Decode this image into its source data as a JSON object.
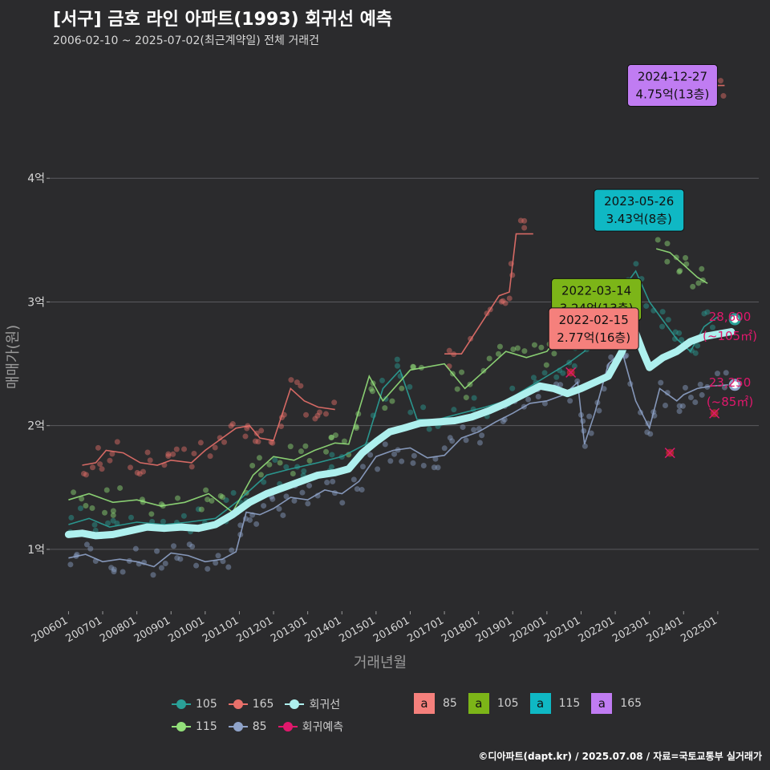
{
  "header": {
    "title": "[서구] 금호 라인 아파트(1993) 회귀선 예측",
    "subtitle": "2006-02-10 ~ 2025-07-02(최근계약일) 전체 거래건"
  },
  "footer": "©디아파트(dapt.kr) / 2025.07.08 / 자료=국토교통부 실거래가",
  "colors": {
    "background": "#2b2b2d",
    "grid": "#5a5a5e",
    "s85": "#8fa3c9",
    "s105": "#2aa198",
    "s115": "#93e07a",
    "s165": "#e8706a",
    "regression": "#aef0ee",
    "forecast": "#e0186c"
  },
  "chart_data": {
    "type": "line",
    "xlabel": "거래년월",
    "ylabel": "매매가(원)",
    "ylim": [
      0.5,
      5.0
    ],
    "y_ticks": [
      {
        "value": 1,
        "label": "1억"
      },
      {
        "value": 2,
        "label": "2억"
      },
      {
        "value": 3,
        "label": "3억"
      },
      {
        "value": 4,
        "label": "4억"
      }
    ],
    "x_ticks": [
      {
        "value": 2006.0,
        "label": "200601"
      },
      {
        "value": 2007.0,
        "label": "200701"
      },
      {
        "value": 2008.0,
        "label": "200801"
      },
      {
        "value": 2009.0,
        "label": "200901"
      },
      {
        "value": 2010.0,
        "label": "201001"
      },
      {
        "value": 2011.0,
        "label": "201101"
      },
      {
        "value": 2012.0,
        "label": "201201"
      },
      {
        "value": 2013.0,
        "label": "201301"
      },
      {
        "value": 2014.0,
        "label": "201401"
      },
      {
        "value": 2015.0,
        "label": "201501"
      },
      {
        "value": 2016.0,
        "label": "201601"
      },
      {
        "value": 2017.0,
        "label": "201701"
      },
      {
        "value": 2018.0,
        "label": "201801"
      },
      {
        "value": 2019.0,
        "label": "201901"
      },
      {
        "value": 2020.0,
        "label": "202001"
      },
      {
        "value": 2021.0,
        "label": "202101"
      },
      {
        "value": 2022.0,
        "label": "202201"
      },
      {
        "value": 2023.0,
        "label": "202301"
      },
      {
        "value": 2024.0,
        "label": "202401"
      },
      {
        "value": 2025.0,
        "label": "202501"
      }
    ],
    "series": [
      {
        "name": "85",
        "color": "#8fa3c9",
        "points": [
          [
            2006.0,
            0.93
          ],
          [
            2006.5,
            0.96
          ],
          [
            2007.0,
            0.9
          ],
          [
            2007.5,
            0.92
          ],
          [
            2008.0,
            0.9
          ],
          [
            2008.5,
            0.86
          ],
          [
            2009.0,
            0.97
          ],
          [
            2009.5,
            0.95
          ],
          [
            2010.0,
            0.9
          ],
          [
            2010.5,
            0.92
          ],
          [
            2010.9,
            0.98
          ],
          [
            2011.2,
            1.3
          ],
          [
            2011.6,
            1.28
          ],
          [
            2012.0,
            1.33
          ],
          [
            2012.5,
            1.42
          ],
          [
            2013.0,
            1.4
          ],
          [
            2013.5,
            1.48
          ],
          [
            2014.0,
            1.45
          ],
          [
            2014.5,
            1.55
          ],
          [
            2015.0,
            1.75
          ],
          [
            2015.5,
            1.8
          ],
          [
            2016.0,
            1.82
          ],
          [
            2016.5,
            1.74
          ],
          [
            2017.0,
            1.76
          ],
          [
            2017.5,
            1.9
          ],
          [
            2018.0,
            1.95
          ],
          [
            2018.5,
            2.03
          ],
          [
            2019.0,
            2.1
          ],
          [
            2019.5,
            2.18
          ],
          [
            2020.0,
            2.2
          ],
          [
            2020.5,
            2.25
          ],
          [
            2020.9,
            2.35
          ],
          [
            2021.1,
            1.85
          ],
          [
            2021.4,
            2.1
          ],
          [
            2021.8,
            2.5
          ],
          [
            2022.2,
            2.6
          ],
          [
            2022.6,
            2.2
          ],
          [
            2023.0,
            1.98
          ],
          [
            2023.3,
            2.3
          ],
          [
            2023.8,
            2.2
          ],
          [
            2024.0,
            2.25
          ],
          [
            2024.4,
            2.3
          ],
          [
            2024.8,
            2.32
          ],
          [
            2025.3,
            2.33
          ]
        ]
      },
      {
        "name": "105",
        "color": "#2aa198",
        "points": [
          [
            2006.0,
            1.2
          ],
          [
            2006.6,
            1.25
          ],
          [
            2007.2,
            1.18
          ],
          [
            2008.0,
            1.22
          ],
          [
            2008.8,
            1.2
          ],
          [
            2009.5,
            1.22
          ],
          [
            2010.3,
            1.25
          ],
          [
            2011.0,
            1.4
          ],
          [
            2011.8,
            1.6
          ],
          [
            2012.5,
            1.65
          ],
          [
            2013.3,
            1.7
          ],
          [
            2014.0,
            1.75
          ],
          [
            2014.7,
            1.85
          ],
          [
            2015.2,
            2.3
          ],
          [
            2015.7,
            2.45
          ],
          [
            2016.2,
            2.05
          ],
          [
            2016.8,
            2.05
          ],
          [
            2017.5,
            2.1
          ],
          [
            2018.2,
            2.15
          ],
          [
            2018.8,
            2.2
          ],
          [
            2019.4,
            2.3
          ],
          [
            2020.0,
            2.4
          ],
          [
            2020.6,
            2.5
          ],
          [
            2021.1,
            2.6
          ],
          [
            2021.7,
            2.85
          ],
          [
            2022.2,
            3.1
          ],
          [
            2022.6,
            3.25
          ],
          [
            2023.0,
            3.0
          ],
          [
            2023.4,
            2.85
          ],
          [
            2023.8,
            2.7
          ],
          [
            2024.2,
            2.6
          ],
          [
            2024.6,
            2.8
          ],
          [
            2025.0,
            2.88
          ]
        ]
      },
      {
        "name": "115",
        "color": "#93e07a",
        "points": [
          [
            2006.0,
            1.4
          ],
          [
            2006.6,
            1.45
          ],
          [
            2007.3,
            1.38
          ],
          [
            2008.0,
            1.4
          ],
          [
            2008.7,
            1.35
          ],
          [
            2009.4,
            1.38
          ],
          [
            2010.1,
            1.45
          ],
          [
            2010.8,
            1.3
          ],
          [
            2011.4,
            1.6
          ],
          [
            2012.0,
            1.75
          ],
          [
            2012.6,
            1.72
          ],
          [
            2013.2,
            1.8
          ],
          [
            2013.8,
            1.86
          ],
          [
            2014.2,
            1.85
          ],
          [
            2014.8,
            2.4
          ],
          [
            2015.2,
            2.2
          ],
          [
            2016.0,
            2.45
          ],
          [
            2017.0,
            2.5
          ],
          [
            2017.6,
            2.3
          ],
          [
            2018.2,
            2.45
          ],
          [
            2018.8,
            2.6
          ],
          [
            2019.4,
            2.55
          ],
          [
            2020.0,
            2.6
          ],
          [
            2020.8,
            2.9
          ],
          [
            2021.3,
            2.85
          ],
          [
            2023.2,
            3.43
          ],
          [
            2023.6,
            3.4
          ],
          [
            2024.0,
            3.3
          ],
          [
            2024.4,
            3.2
          ],
          [
            2024.7,
            3.15
          ]
        ]
      },
      {
        "name": "165",
        "color": "#e8706a",
        "points": [
          [
            2006.4,
            1.68
          ],
          [
            2006.8,
            1.7
          ],
          [
            2007.1,
            1.8
          ],
          [
            2007.6,
            1.78
          ],
          [
            2008.1,
            1.7
          ],
          [
            2008.6,
            1.68
          ],
          [
            2009.0,
            1.72
          ],
          [
            2009.6,
            1.7
          ],
          [
            2010.0,
            1.8
          ],
          [
            2010.5,
            1.9
          ],
          [
            2010.9,
            1.98
          ],
          [
            2011.3,
            2.0
          ],
          [
            2011.6,
            1.9
          ],
          [
            2012.0,
            1.88
          ],
          [
            2012.5,
            2.3
          ],
          [
            2012.9,
            2.2
          ],
          [
            2013.3,
            2.15
          ],
          [
            2013.8,
            2.13
          ],
          [
            2017.0,
            2.58
          ],
          [
            2017.5,
            2.58
          ],
          [
            2018.6,
            3.05
          ],
          [
            2018.9,
            3.08
          ],
          [
            2019.1,
            3.55
          ],
          [
            2019.6,
            3.55
          ],
          [
            2024.8,
            4.75
          ],
          [
            2025.2,
            4.75
          ]
        ]
      }
    ],
    "regression": {
      "name": "회귀선",
      "color": "#aef0ee",
      "points": [
        [
          2006.0,
          1.12
        ],
        [
          2006.4,
          1.13
        ],
        [
          2006.8,
          1.11
        ],
        [
          2007.3,
          1.12
        ],
        [
          2007.8,
          1.15
        ],
        [
          2008.3,
          1.18
        ],
        [
          2008.8,
          1.17
        ],
        [
          2009.3,
          1.18
        ],
        [
          2009.8,
          1.17
        ],
        [
          2010.3,
          1.2
        ],
        [
          2010.8,
          1.28
        ],
        [
          2011.3,
          1.38
        ],
        [
          2011.8,
          1.45
        ],
        [
          2012.3,
          1.5
        ],
        [
          2012.8,
          1.55
        ],
        [
          2013.3,
          1.6
        ],
        [
          2013.8,
          1.62
        ],
        [
          2014.2,
          1.65
        ],
        [
          2014.6,
          1.78
        ],
        [
          2015.0,
          1.87
        ],
        [
          2015.4,
          1.95
        ],
        [
          2015.8,
          1.98
        ],
        [
          2016.3,
          2.02
        ],
        [
          2016.8,
          2.03
        ],
        [
          2017.3,
          2.04
        ],
        [
          2017.8,
          2.07
        ],
        [
          2018.3,
          2.12
        ],
        [
          2018.8,
          2.18
        ],
        [
          2019.3,
          2.25
        ],
        [
          2019.8,
          2.32
        ],
        [
          2020.2,
          2.3
        ],
        [
          2020.6,
          2.26
        ],
        [
          2021.0,
          2.3
        ],
        [
          2021.4,
          2.35
        ],
        [
          2021.8,
          2.4
        ],
        [
          2022.2,
          2.6
        ],
        [
          2022.5,
          2.82
        ],
        [
          2022.8,
          2.6
        ],
        [
          2023.0,
          2.47
        ],
        [
          2023.4,
          2.55
        ],
        [
          2023.8,
          2.6
        ],
        [
          2024.2,
          2.68
        ],
        [
          2024.6,
          2.72
        ],
        [
          2025.0,
          2.74
        ],
        [
          2025.4,
          2.76
        ]
      ]
    },
    "forecast_markers": [
      {
        "x": 2020.7,
        "y": 2.43
      },
      {
        "x": 2023.6,
        "y": 1.78
      },
      {
        "x": 2024.9,
        "y": 2.1
      }
    ],
    "endpoints": [
      {
        "series": "105",
        "x": 2025.5,
        "y": 2.86
      },
      {
        "series": "85",
        "x": 2025.5,
        "y": 2.33
      }
    ],
    "forecast_labels": [
      {
        "value": "28,600",
        "area": "(~105㎡)",
        "y": 2.86
      },
      {
        "value": "23,250",
        "area": "(~85㎡)",
        "y": 2.33
      }
    ],
    "annotations": [
      {
        "date": "2024-12-27",
        "price": "4.75억(13층)",
        "series": "165",
        "x": 2024.99,
        "y": 4.75,
        "color": "#c07cf2"
      },
      {
        "date": "2023-05-26",
        "price": "3.43억(8층)",
        "series": "115",
        "x": 2023.4,
        "y": 3.43,
        "color": "#0fb8c4"
      },
      {
        "date": "2022-03-14",
        "price": "3.24억(13층)",
        "series": "105",
        "x": 2022.2,
        "y": 3.24,
        "color": "#7cb518"
      },
      {
        "date": "2022-02-15",
        "price": "2.77억(16층)",
        "series": "85",
        "x": 2022.12,
        "y": 2.77,
        "color": "#f5807c"
      }
    ]
  },
  "legend": {
    "items": [
      {
        "label": "105",
        "color": "#2aa198"
      },
      {
        "label": "165",
        "color": "#e8706a"
      },
      {
        "label": "회귀선",
        "color": "#aef0ee"
      },
      {
        "label": "115",
        "color": "#93e07a"
      },
      {
        "label": "85",
        "color": "#8fa3c9"
      },
      {
        "label": "회귀예측",
        "color": "#e0186c"
      }
    ],
    "label_keys": [
      {
        "glyph": "a",
        "label": "85",
        "color": "#f5807c"
      },
      {
        "glyph": "a",
        "label": "105",
        "color": "#7cb518"
      },
      {
        "glyph": "a",
        "label": "115",
        "color": "#0fb8c4"
      },
      {
        "glyph": "a",
        "label": "165",
        "color": "#c07cf2"
      }
    ]
  }
}
